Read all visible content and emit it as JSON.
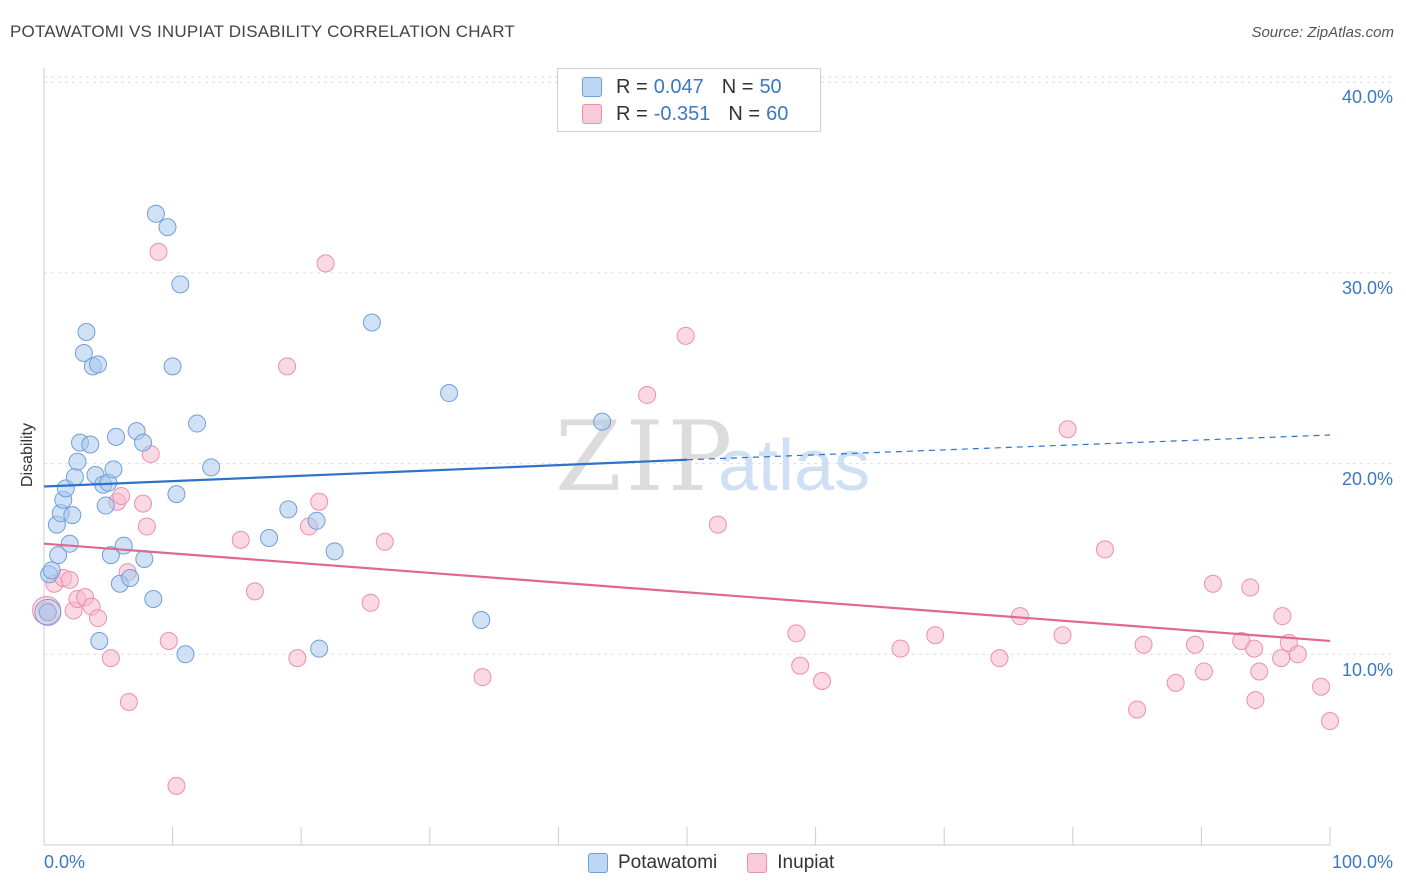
{
  "title": "POTAWATOMI VS INUPIAT DISABILITY CORRELATION CHART",
  "source": "Source: ZipAtlas.com",
  "watermark": {
    "zip": "ZIP",
    "atlas": "atlas"
  },
  "legend": {
    "rows": [
      {
        "r_label": "R =",
        "r_value": "0.047",
        "n_label": "N =",
        "n_value": "50"
      },
      {
        "r_label": "R =",
        "r_value": "-0.351",
        "n_label": "N =",
        "n_value": "60"
      }
    ]
  },
  "bottom_legend": [
    "Potawatomi",
    "Inupiat"
  ],
  "x_tick_labels": {
    "left": "0.0%",
    "right": "100.0%"
  },
  "y_tick_labels": [
    "10.0%",
    "20.0%",
    "30.0%",
    "40.0%"
  ],
  "colors": {
    "potawatomi_fill": "#a9c9ee",
    "potawatomi_stroke": "#6f9fd8",
    "potawatomi_line": "#2f72c9",
    "inupiat_fill": "#f7b9cd",
    "inupiat_stroke": "#ec8fae",
    "inupiat_line": "#e2678f",
    "accent_text": "#3b78c4",
    "grid": "#dddddd"
  },
  "chart_data": {
    "type": "scatter",
    "title": "POTAWATOMI VS INUPIAT DISABILITY CORRELATION CHART",
    "xlabel": "",
    "ylabel": "Disability",
    "xlim": [
      0,
      100
    ],
    "ylim": [
      0,
      42
    ],
    "grid": true,
    "legend_placement": "bottom-center",
    "series": [
      {
        "name": "Potawatomi",
        "r": 0.047,
        "n": 50,
        "trend": {
          "x": [
            0,
            50
          ],
          "y": [
            18.8,
            20.2
          ],
          "dashed_to": [
            100,
            21.5
          ]
        },
        "points": [
          [
            0.3,
            12.2
          ],
          [
            0.4,
            14.2
          ],
          [
            0.6,
            14.4
          ],
          [
            1.0,
            16.8
          ],
          [
            1.1,
            15.2
          ],
          [
            1.3,
            17.4
          ],
          [
            1.5,
            18.1
          ],
          [
            1.7,
            18.7
          ],
          [
            2.0,
            15.8
          ],
          [
            2.2,
            17.3
          ],
          [
            2.4,
            19.3
          ],
          [
            2.6,
            20.1
          ],
          [
            2.8,
            21.1
          ],
          [
            3.1,
            25.8
          ],
          [
            3.3,
            26.9
          ],
          [
            3.6,
            21.0
          ],
          [
            3.8,
            25.1
          ],
          [
            4.0,
            19.4
          ],
          [
            4.2,
            25.2
          ],
          [
            4.3,
            10.7
          ],
          [
            4.6,
            18.9
          ],
          [
            4.8,
            17.8
          ],
          [
            5.0,
            19.0
          ],
          [
            5.2,
            15.2
          ],
          [
            5.4,
            19.7
          ],
          [
            5.6,
            21.4
          ],
          [
            5.9,
            13.7
          ],
          [
            6.2,
            15.7
          ],
          [
            6.7,
            14.0
          ],
          [
            7.2,
            21.7
          ],
          [
            7.7,
            21.1
          ],
          [
            7.8,
            15.0
          ],
          [
            8.5,
            12.9
          ],
          [
            8.7,
            33.1
          ],
          [
            9.6,
            32.4
          ],
          [
            10.0,
            25.1
          ],
          [
            10.3,
            18.4
          ],
          [
            10.6,
            29.4
          ],
          [
            11.0,
            10.0
          ],
          [
            11.9,
            22.1
          ],
          [
            13.0,
            19.8
          ],
          [
            17.5,
            16.1
          ],
          [
            19.0,
            17.6
          ],
          [
            21.2,
            17.0
          ],
          [
            21.4,
            10.3
          ],
          [
            22.6,
            15.4
          ],
          [
            25.5,
            27.4
          ],
          [
            31.5,
            23.7
          ],
          [
            34.0,
            11.8
          ],
          [
            43.4,
            22.2
          ]
        ]
      },
      {
        "name": "Inupiat",
        "r": -0.351,
        "n": 60,
        "trend": {
          "x": [
            0,
            100
          ],
          "y": [
            15.8,
            10.7
          ]
        },
        "points": [
          [
            0.2,
            12.3
          ],
          [
            0.8,
            13.7
          ],
          [
            1.5,
            14.0
          ],
          [
            2.0,
            13.9
          ],
          [
            2.3,
            12.3
          ],
          [
            2.6,
            12.9
          ],
          [
            3.2,
            13.0
          ],
          [
            3.7,
            12.5
          ],
          [
            4.2,
            11.9
          ],
          [
            5.2,
            9.8
          ],
          [
            5.7,
            18.0
          ],
          [
            6.0,
            18.3
          ],
          [
            6.5,
            14.3
          ],
          [
            6.6,
            7.5
          ],
          [
            7.7,
            17.9
          ],
          [
            8.0,
            16.7
          ],
          [
            8.3,
            20.5
          ],
          [
            8.9,
            31.1
          ],
          [
            9.7,
            10.7
          ],
          [
            10.3,
            3.1
          ],
          [
            15.3,
            16.0
          ],
          [
            16.4,
            13.3
          ],
          [
            18.9,
            25.1
          ],
          [
            19.7,
            9.8
          ],
          [
            20.6,
            16.7
          ],
          [
            21.4,
            18.0
          ],
          [
            21.9,
            30.5
          ],
          [
            25.4,
            12.7
          ],
          [
            26.5,
            15.9
          ],
          [
            34.1,
            8.8
          ],
          [
            46.9,
            23.6
          ],
          [
            49.9,
            26.7
          ],
          [
            52.4,
            16.8
          ],
          [
            58.5,
            11.1
          ],
          [
            58.8,
            9.4
          ],
          [
            60.5,
            8.6
          ],
          [
            66.6,
            10.3
          ],
          [
            69.3,
            11.0
          ],
          [
            74.3,
            9.8
          ],
          [
            75.9,
            12.0
          ],
          [
            79.2,
            11.0
          ],
          [
            79.6,
            21.8
          ],
          [
            82.5,
            15.5
          ],
          [
            85.0,
            7.1
          ],
          [
            85.5,
            10.5
          ],
          [
            88.0,
            8.5
          ],
          [
            89.5,
            10.5
          ],
          [
            90.2,
            9.1
          ],
          [
            90.9,
            13.7
          ],
          [
            93.1,
            10.7
          ],
          [
            93.8,
            13.5
          ],
          [
            94.1,
            10.3
          ],
          [
            94.2,
            7.6
          ],
          [
            94.5,
            9.1
          ],
          [
            96.2,
            9.8
          ],
          [
            96.3,
            12.0
          ],
          [
            96.8,
            10.6
          ],
          [
            97.5,
            10.0
          ],
          [
            99.3,
            8.3
          ],
          [
            100.0,
            6.5
          ]
        ]
      }
    ]
  }
}
